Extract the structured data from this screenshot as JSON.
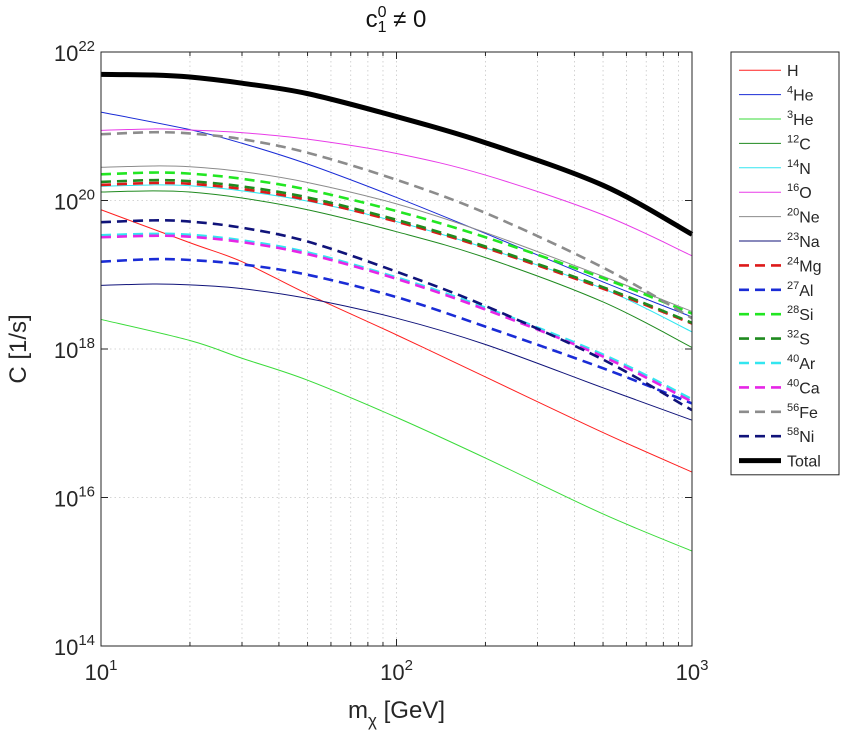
{
  "chart_data": {
    "type": "line",
    "title": "c_1^0 ≠ 0",
    "title_parts": {
      "base": "c",
      "sup": "0",
      "sub": "1",
      "rest": " ≠ 0"
    },
    "xlabel": "m_χ [GeV]",
    "xlabel_parts": {
      "base": "m",
      "sub": "χ",
      "rest": " [GeV]"
    },
    "ylabel": "C [1/s]",
    "xscale": "log",
    "yscale": "log",
    "xlim": [
      10,
      1000
    ],
    "ylim": [
      100000000000000.0,
      1e+22
    ],
    "xticks": [
      {
        "value": 10,
        "base": "10",
        "exp": "1"
      },
      {
        "value": 100,
        "base": "10",
        "exp": "2"
      },
      {
        "value": 1000,
        "base": "10",
        "exp": "3"
      }
    ],
    "yticks": [
      {
        "value": 100000000000000.0,
        "base": "10",
        "exp": "14"
      },
      {
        "value": 1e+16,
        "base": "10",
        "exp": "16"
      },
      {
        "value": 1e+18,
        "base": "10",
        "exp": "18"
      },
      {
        "value": 1e+20,
        "base": "10",
        "exp": "20"
      },
      {
        "value": 1e+22,
        "base": "10",
        "exp": "22"
      }
    ],
    "grid": true,
    "legend_position": "outside-right",
    "series": [
      {
        "name": "H",
        "iso": "",
        "elem": "H",
        "color": "#ff2020",
        "style": "solid",
        "weight": "thin",
        "x": [
          10,
          20,
          30,
          50,
          100,
          200,
          500,
          1000
        ],
        "y": [
          7.5e+19,
          2.7e+19,
          1.5e+19,
          5.5e+18,
          1.55e+18,
          4.2e+17,
          7.5e+16,
          2.2e+16
        ]
      },
      {
        "name": "4He",
        "iso": "4",
        "elem": "He",
        "color": "#1a2cd6",
        "style": "solid",
        "weight": "thin",
        "x": [
          10,
          20,
          30,
          50,
          100,
          200,
          500,
          1000
        ],
        "y": [
          1.55e+21,
          9e+20,
          5.9e+20,
          3.1e+20,
          1.1e+20,
          3.6e+19,
          8e+18,
          2.7e+18
        ]
      },
      {
        "name": "3He",
        "iso": "3",
        "elem": "He",
        "color": "#3adb3a",
        "style": "solid",
        "weight": "thin",
        "x": [
          10,
          20,
          30,
          50,
          100,
          200,
          500,
          1000
        ],
        "y": [
          2.5e+18,
          1.3e+18,
          7.5e+17,
          3.8e+17,
          1.2e+17,
          3.4e+16,
          6000000000000000.0,
          1900000000000000.0
        ]
      },
      {
        "name": "12C",
        "iso": "12",
        "elem": "C",
        "color": "#1f8a1f",
        "style": "solid",
        "weight": "thin",
        "x": [
          10,
          15,
          20,
          30,
          50,
          100,
          200,
          500,
          1000
        ],
        "y": [
          1.3e+20,
          1.35e+20,
          1.3e+20,
          1.08e+20,
          7.5e+19,
          3.8e+19,
          1.7e+19,
          4.3e+18,
          1.05e+18
        ]
      },
      {
        "name": "14N",
        "iso": "14",
        "elem": "N",
        "color": "#33e6f0",
        "style": "solid",
        "weight": "thin",
        "x": [
          10,
          15,
          20,
          30,
          50,
          100,
          200,
          500,
          1000
        ],
        "y": [
          1.55e+20,
          1.62e+20,
          1.58e+20,
          1.35e+20,
          9.8e+19,
          5.2e+19,
          2.3e+19,
          6.5e+18,
          1.7e+18
        ]
      },
      {
        "name": "16O",
        "iso": "16",
        "elem": "O",
        "color": "#e83ce8",
        "style": "solid",
        "weight": "thin",
        "x": [
          10,
          15,
          20,
          30,
          50,
          100,
          200,
          500,
          1000
        ],
        "y": [
          8.8e+20,
          9.2e+20,
          8.9e+20,
          8.2e+20,
          6.7e+20,
          4.3e+20,
          2.2e+20,
          6.4e+19,
          1.8e+19
        ]
      },
      {
        "name": "20Ne",
        "iso": "20",
        "elem": "Ne",
        "color": "#8c8c8c",
        "style": "solid",
        "weight": "thin",
        "x": [
          10,
          15,
          20,
          30,
          50,
          100,
          200,
          500,
          1000
        ],
        "y": [
          2.8e+20,
          2.92e+20,
          2.85e+20,
          2.45e+20,
          1.75e+20,
          9e+19,
          3.7e+19,
          9.5e+18,
          3.2e+18
        ]
      },
      {
        "name": "23Na",
        "iso": "23",
        "elem": "Na",
        "color": "#10137a",
        "style": "solid",
        "weight": "thin",
        "x": [
          10,
          15,
          20,
          30,
          50,
          100,
          200,
          500,
          1000
        ],
        "y": [
          7.2e+18,
          7.5e+18,
          7.3e+18,
          6.5e+18,
          4.8e+18,
          2.6e+18,
          1.15e+18,
          3e+17,
          1.1e+17
        ]
      },
      {
        "name": "24Mg",
        "iso": "24",
        "elem": "Mg",
        "color": "#dd1a1a",
        "style": "dashed",
        "weight": "thick",
        "x": [
          10,
          15,
          20,
          30,
          50,
          100,
          200,
          500,
          1000
        ],
        "y": [
          1.62e+20,
          1.72e+20,
          1.68e+20,
          1.43e+20,
          1.02e+20,
          5.2e+19,
          2.3e+19,
          6.5e+18,
          2.2e+18
        ]
      },
      {
        "name": "27Al",
        "iso": "27",
        "elem": "Al",
        "color": "#1a2cd6",
        "style": "dashed",
        "weight": "thick",
        "x": [
          10,
          15,
          20,
          30,
          50,
          100,
          200,
          500,
          1000
        ],
        "y": [
          1.5e+19,
          1.62e+19,
          1.58e+19,
          1.38e+19,
          1e+19,
          5e+18,
          2e+18,
          5.5e+17,
          1.85e+17
        ]
      },
      {
        "name": "28Si",
        "iso": "28",
        "elem": "Si",
        "color": "#22e622",
        "style": "dashed",
        "weight": "thick",
        "x": [
          10,
          15,
          20,
          30,
          50,
          100,
          200,
          500,
          1000
        ],
        "y": [
          2.25e+20,
          2.38e+20,
          2.3e+20,
          1.96e+20,
          1.4e+20,
          7.2e+19,
          3.2e+19,
          9e+18,
          3e+18
        ]
      },
      {
        "name": "32S",
        "iso": "32",
        "elem": "S",
        "color": "#1f8a1f",
        "style": "dashed",
        "weight": "thick",
        "x": [
          10,
          15,
          20,
          30,
          50,
          100,
          200,
          500,
          1000
        ],
        "y": [
          1.78e+20,
          1.88e+20,
          1.82e+20,
          1.55e+20,
          1.1e+20,
          5.5e+19,
          2.4e+19,
          6.8e+18,
          2.25e+18
        ]
      },
      {
        "name": "40Ar",
        "iso": "40",
        "elem": "Ar",
        "color": "#33e6f0",
        "style": "dashed",
        "weight": "thick",
        "x": [
          10,
          15,
          20,
          30,
          50,
          100,
          200,
          500,
          1000
        ],
        "y": [
          3.4e+19,
          3.55e+19,
          3.45e+19,
          2.9e+19,
          2e+19,
          9.2e+18,
          3.6e+18,
          8.4e+17,
          2.1e+17
        ]
      },
      {
        "name": "40Ca",
        "iso": "40",
        "elem": "Ca",
        "color": "#e626e6",
        "style": "dashed",
        "weight": "thick",
        "x": [
          10,
          15,
          20,
          30,
          50,
          100,
          200,
          500,
          1000
        ],
        "y": [
          3.2e+19,
          3.35e+19,
          3.25e+19,
          2.75e+19,
          1.9e+19,
          8.8e+18,
          3.4e+18,
          7.9e+17,
          1.95e+17
        ]
      },
      {
        "name": "56Fe",
        "iso": "56",
        "elem": "Fe",
        "color": "#8c8c8c",
        "style": "dashed",
        "weight": "thick",
        "x": [
          10,
          15,
          20,
          30,
          50,
          100,
          200,
          500,
          1000
        ],
        "y": [
          7.8e+20,
          8.3e+20,
          8e+20,
          6.7e+20,
          4.4e+20,
          1.9e+20,
          6.8e+19,
          1.25e+19,
          2.6e+18
        ]
      },
      {
        "name": "58Ni",
        "iso": "58",
        "elem": "Ni",
        "color": "#10137a",
        "style": "dashed",
        "weight": "thick",
        "x": [
          10,
          15,
          20,
          30,
          50,
          100,
          200,
          500,
          1000
        ],
        "y": [
          5.1e+19,
          5.4e+19,
          5.2e+19,
          4.3e+19,
          2.8e+19,
          1.1e+19,
          3.8e+18,
          7.2e+17,
          1.5e+17
        ]
      },
      {
        "name": "Total",
        "iso": "",
        "elem": "Total",
        "color": "#000000",
        "style": "solid",
        "weight": "bold",
        "x": [
          10,
          15,
          20,
          30,
          50,
          100,
          200,
          500,
          1000
        ],
        "y": [
          5e+21,
          4.9e+21,
          4.6e+21,
          3.8e+21,
          2.75e+21,
          1.35e+21,
          6e+20,
          1.6e+20,
          3.5e+19
        ]
      }
    ]
  }
}
